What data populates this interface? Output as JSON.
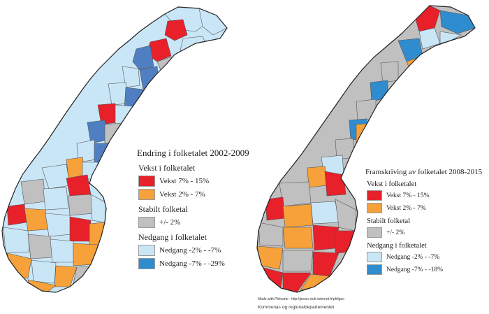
{
  "colors": {
    "growth_high": "#e8202a",
    "growth_mid": "#f7a13a",
    "stable": "#c0c0c0",
    "decline_mid": "#c9e6f7",
    "decline_high": "#2f8ccf",
    "decline_high_left": "#4f7fc2"
  },
  "legend_left": {
    "title": "Endring i folketalet 2002-2009",
    "group_growth": "Vekst i folketalet",
    "growth_high": "Vekst 7% - 15%",
    "growth_mid": "Vekst 2% - 7%",
    "group_stable": "Stabilt folketal",
    "stable": "+/- 2%",
    "group_decline": "Nedgang i folketalet",
    "decline_mid": "Nedgang -2% - -7%",
    "decline_high": "Nedgang -7% - -29%"
  },
  "legend_right": {
    "title": "Framskriving av folketalet 2008-2015",
    "group_growth": "Vekst i folketalet",
    "growth_high": "Vekst 7% - 15%",
    "growth_mid": "Vekst 2% - 7%",
    "group_stable": "Stabilt folketal",
    "stable": "+/- 2%",
    "group_decline": "Nedgang i folketalet",
    "decline_mid": "Nedgang -2% - -7%",
    "decline_high": "Nedgang -7% - -18%"
  },
  "credits": {
    "made_with": "Made with Philcarto - http://perso.club-internet.fr/philgeo",
    "department": "Kommunal- og regionaldepartementet"
  }
}
